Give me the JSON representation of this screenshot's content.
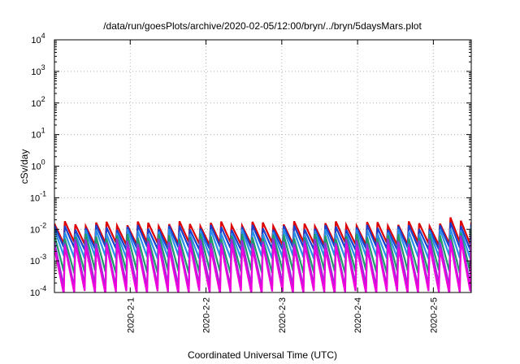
{
  "chart_data": {
    "type": "line",
    "title": "/data/run/goesPlots/archive/2020-02-05/12:00/bryn/../bryn/5daysMars.plot",
    "xlabel": "Coordinated Universal Time (UTC)",
    "ylabel": "cSv/day",
    "x_domain": [
      "2020-01-31T00:00",
      "2020-02-05T12:00"
    ],
    "x_ticks": [
      "2020-2-1",
      "2020-2-2",
      "2020-2-3",
      "2020-2-4",
      "2020-2-5"
    ],
    "y_scale": "log",
    "y_range": [
      0.0001,
      10000
    ],
    "y_ticks": [
      {
        "base": "10",
        "exp": "-4"
      },
      {
        "base": "10",
        "exp": "-3"
      },
      {
        "base": "10",
        "exp": "-2"
      },
      {
        "base": "10",
        "exp": "-1"
      },
      {
        "base": "10",
        "exp": "0"
      },
      {
        "base": "10",
        "exp": "1"
      },
      {
        "base": "10",
        "exp": "2"
      },
      {
        "base": "10",
        "exp": "3"
      },
      {
        "base": "10",
        "exp": "4"
      }
    ],
    "grid": true,
    "legend": "none",
    "sawtooth": {
      "description_free": true,
      "period_days": 0.1375,
      "trough_fraction": 0.9,
      "bump_start": "2020-02-05T03:00"
    },
    "series": [
      {
        "color": "#dd0000",
        "peak": 0.015,
        "trough": 0.0035
      },
      {
        "color": "#1a3fcc",
        "peak": 0.0115,
        "trough": 0.0025
      },
      {
        "color": "#2a8fe8",
        "peak": 0.0085,
        "trough": 0.0013
      },
      {
        "color": "#1e9c6a",
        "peak": 0.006,
        "trough": 0.00045
      },
      {
        "color": "#9a2bd6",
        "peak": 0.0042,
        "trough": 0.00016
      },
      {
        "color": "#ee00dd",
        "peak": 0.003,
        "trough": 0.0001
      }
    ]
  }
}
